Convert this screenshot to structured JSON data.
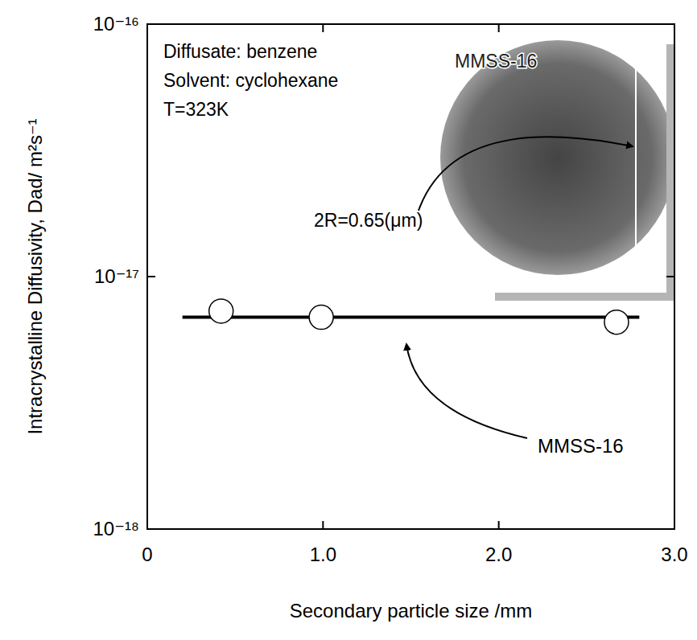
{
  "chart_data": {
    "type": "scatter",
    "x_label": "Secondary particle size /mm",
    "y_label": "Intracrystalline Diffusivity, Dad/ m²s⁻¹",
    "log": "y",
    "grid": false,
    "xlim": [
      0,
      3
    ],
    "ylim": [
      1e-18,
      1e-16
    ],
    "xticks": [
      0,
      {
        "value": 1,
        "label": "1.0"
      },
      {
        "value": 2,
        "label": "2.0"
      },
      {
        "value": 3,
        "label": "3.0"
      }
    ],
    "yticks": [
      {
        "value": 1e-18,
        "label": "10⁻¹⁸"
      },
      {
        "value": 1e-17,
        "label": "10⁻¹⁷"
      },
      {
        "value": 1e-16,
        "label": "10⁻¹⁶"
      }
    ],
    "series": [
      {
        "name": "MMSS-16",
        "type": "line",
        "x": [
          0.2,
          2.8
        ],
        "values": [
          6.9e-18,
          6.9e-18
        ],
        "color": "#000000",
        "marker": "none",
        "line_style": "solid"
      },
      {
        "type": "scatter",
        "x": [
          0.42,
          0.99,
          2.67
        ],
        "values": [
          7.3e-18,
          6.9e-18,
          6.6e-18
        ],
        "color": "#ffffff",
        "marker": "circle"
      }
    ],
    "annotations": [
      "Diffusate: benzene",
      "Solvent: cyclohexane",
      "T=323K"
    ],
    "inset": {
      "label": "MMSS-16",
      "dimension": "2R=0.65(μm)"
    }
  }
}
